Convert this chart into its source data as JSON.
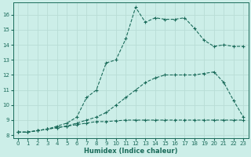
{
  "xlabel": "Humidex (Indice chaleur)",
  "bg_color": "#cceee8",
  "line_color": "#1a6b5a",
  "grid_color": "#b8ddd6",
  "xlim": [
    -0.5,
    23.5
  ],
  "ylim": [
    7.8,
    16.8
  ],
  "xticks": [
    0,
    1,
    2,
    3,
    4,
    5,
    6,
    7,
    8,
    9,
    10,
    11,
    12,
    13,
    14,
    15,
    16,
    17,
    18,
    19,
    20,
    21,
    22,
    23
  ],
  "yticks": [
    8,
    9,
    10,
    11,
    12,
    13,
    14,
    15,
    16
  ],
  "curve1_x": [
    0,
    1,
    2,
    3,
    4,
    5,
    6,
    7,
    8,
    9,
    10,
    11,
    12,
    13,
    14,
    15,
    16,
    17,
    18,
    19,
    20,
    21,
    22,
    23
  ],
  "curve1_y": [
    8.2,
    8.2,
    8.3,
    8.4,
    8.5,
    8.6,
    8.7,
    8.8,
    8.9,
    8.9,
    8.95,
    9.0,
    9.0,
    9.0,
    9.0,
    9.0,
    9.0,
    9.0,
    9.0,
    9.0,
    9.0,
    9.0,
    9.0,
    9.0
  ],
  "curve2_x": [
    0,
    1,
    2,
    3,
    4,
    5,
    6,
    7,
    8,
    9,
    10,
    11,
    12,
    13,
    14,
    15,
    16,
    17,
    18,
    19,
    20,
    21,
    22,
    23
  ],
  "curve2_y": [
    8.2,
    8.2,
    8.3,
    8.4,
    8.5,
    8.6,
    8.8,
    9.0,
    9.2,
    9.5,
    10.0,
    10.5,
    11.0,
    11.5,
    11.8,
    12.0,
    12.0,
    12.0,
    12.0,
    12.1,
    12.2,
    11.5,
    10.3,
    9.2
  ],
  "curve3_x": [
    0,
    1,
    2,
    3,
    4,
    5,
    6,
    7,
    8,
    9,
    10,
    11,
    12,
    13,
    14,
    15,
    16,
    17,
    18,
    19,
    20,
    21,
    22,
    23
  ],
  "curve3_y": [
    8.2,
    8.2,
    8.3,
    8.4,
    8.6,
    8.8,
    9.2,
    10.5,
    11.0,
    12.8,
    13.0,
    14.4,
    16.5,
    15.5,
    15.8,
    15.7,
    15.7,
    15.8,
    15.1,
    14.3,
    13.9,
    14.0,
    13.9,
    13.9
  ]
}
